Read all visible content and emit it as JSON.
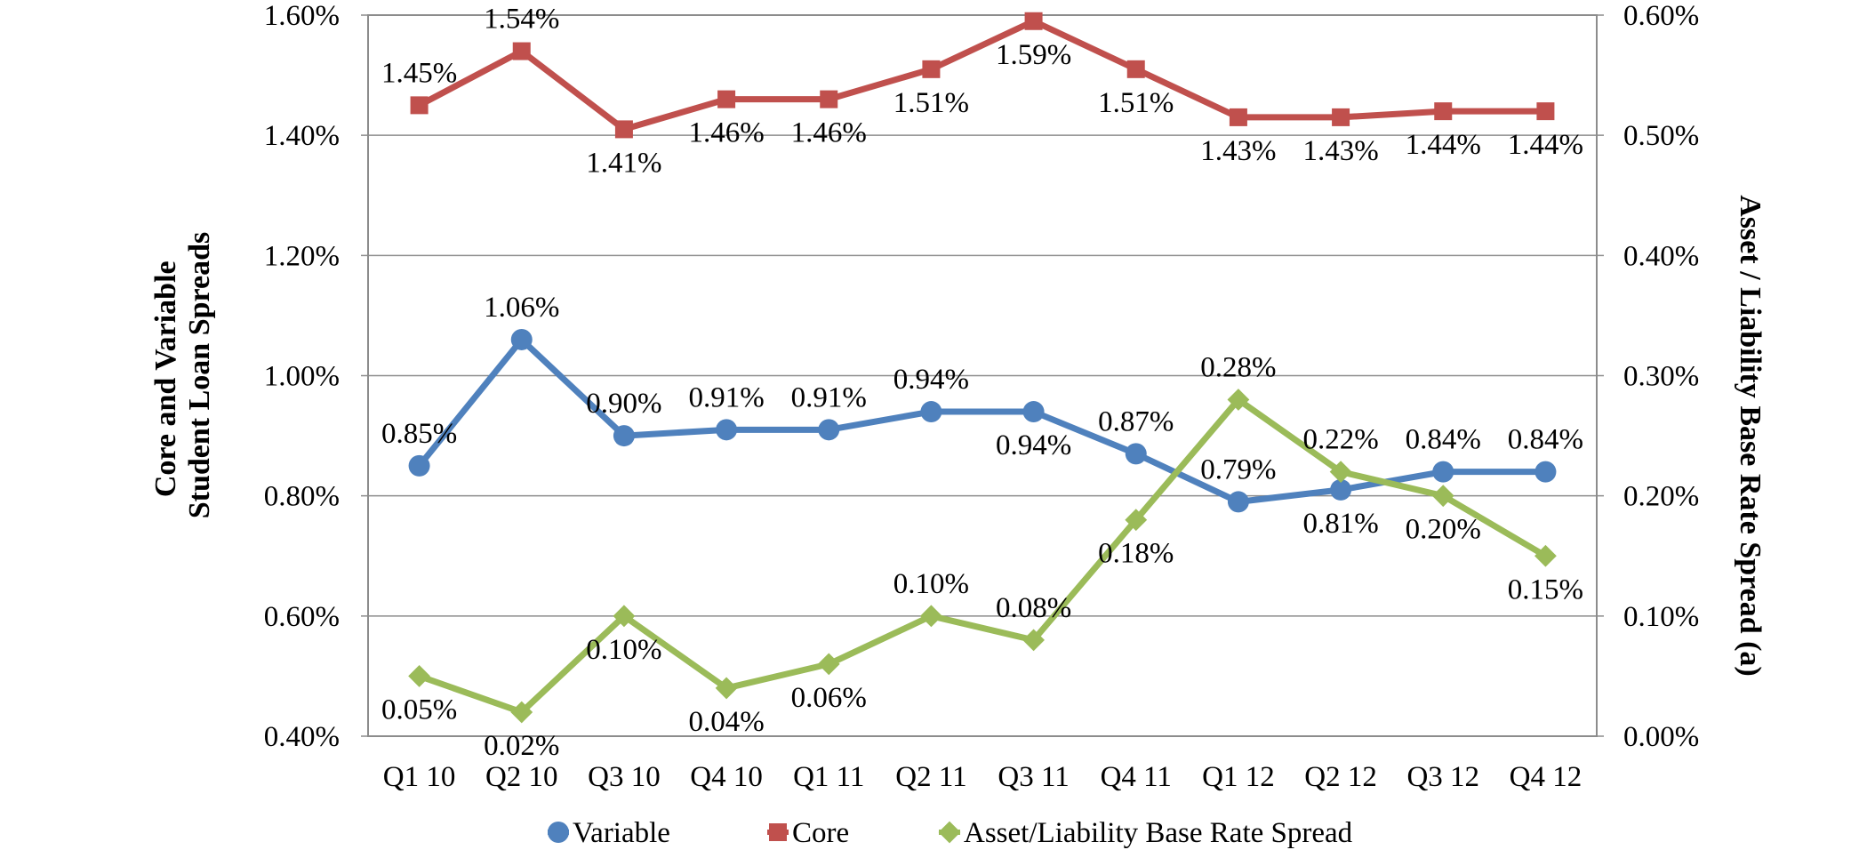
{
  "chart_data": {
    "type": "line",
    "title": "",
    "categories": [
      "Q1 10",
      "Q2 10",
      "Q3 10",
      "Q4 10",
      "Q1 11",
      "Q2 11",
      "Q3 11",
      "Q4 11",
      "Q1 12",
      "Q2 12",
      "Q3 12",
      "Q4 12"
    ],
    "y_left": {
      "label_lines": [
        "Core and Variable",
        "Student Loan Spreads"
      ],
      "range": [
        0.4,
        1.6
      ],
      "ticks": [
        0.4,
        0.6,
        0.8,
        1.0,
        1.2,
        1.4,
        1.6
      ],
      "tick_labels": [
        "0.40%",
        "0.60%",
        "0.80%",
        "1.00%",
        "1.20%",
        "1.40%",
        "1.60%"
      ]
    },
    "y_right": {
      "label": "Asset / Liability Base Rate Spread (a)",
      "range": [
        0.0,
        0.6
      ],
      "ticks": [
        0.0,
        0.1,
        0.2,
        0.3,
        0.4,
        0.5,
        0.6
      ],
      "tick_labels": [
        "0.00%",
        "0.10%",
        "0.20%",
        "0.30%",
        "0.40%",
        "0.50%",
        "0.60%"
      ]
    },
    "grid": true,
    "legend_position": "bottom",
    "series": [
      {
        "name": "Variable",
        "axis": "left",
        "color": "#4F81BD",
        "marker": "circle",
        "values": [
          0.85,
          1.06,
          0.9,
          0.91,
          0.91,
          0.94,
          0.94,
          0.87,
          0.79,
          0.81,
          0.84,
          0.84
        ],
        "labels": [
          "0.85%",
          "1.06%",
          "0.90%",
          "0.91%",
          "0.91%",
          "0.94%",
          "0.94%",
          "0.87%",
          "0.79%",
          "0.81%",
          "0.84%",
          "0.84%"
        ],
        "label_pos": [
          "above",
          "above",
          "above",
          "above",
          "above",
          "above",
          "below",
          "above",
          "above",
          "below",
          "above",
          "above"
        ]
      },
      {
        "name": "Core",
        "axis": "left",
        "color": "#C0504D",
        "marker": "square",
        "values": [
          1.45,
          1.54,
          1.41,
          1.46,
          1.46,
          1.51,
          1.59,
          1.51,
          1.43,
          1.43,
          1.44,
          1.44
        ],
        "labels": [
          "1.45%",
          "1.54%",
          "1.41%",
          "1.46%",
          "1.46%",
          "1.51%",
          "1.59%",
          "1.51%",
          "1.43%",
          "1.43%",
          "1.44%",
          "1.44%"
        ],
        "label_pos": [
          "above",
          "above",
          "below",
          "below",
          "below",
          "below",
          "below",
          "below",
          "below",
          "below",
          "below",
          "below"
        ]
      },
      {
        "name": "Asset/Liability Base Rate Spread",
        "axis": "right",
        "color": "#9BBB59",
        "marker": "diamond",
        "values": [
          0.05,
          0.02,
          0.1,
          0.04,
          0.06,
          0.1,
          0.08,
          0.18,
          0.28,
          0.22,
          0.2,
          0.15
        ],
        "labels": [
          "0.05%",
          "0.02%",
          "0.10%",
          "0.04%",
          "0.06%",
          "0.10%",
          "0.08%",
          "0.18%",
          "0.28%",
          "0.22%",
          "0.20%",
          "0.15%"
        ],
        "label_pos": [
          "below",
          "below",
          "below",
          "below",
          "below",
          "above",
          "above",
          "below",
          "above",
          "above",
          "below",
          "below"
        ]
      }
    ]
  }
}
